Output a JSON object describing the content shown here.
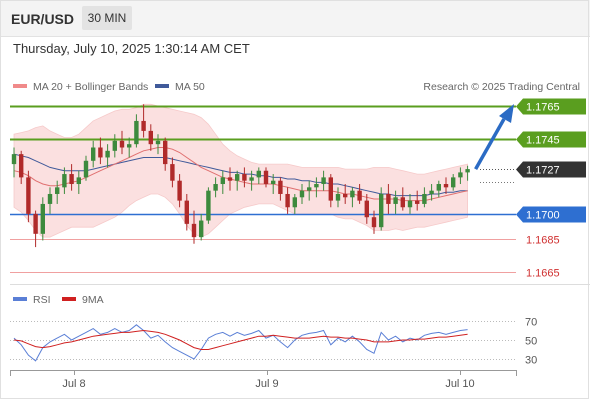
{
  "header": {
    "symbol": "EUR/USD",
    "timeframe": "30 MIN"
  },
  "datetime": "Thursday, July 10, 2025 1:30:14 AM CET",
  "legend": {
    "bb_label": "MA 20 + Bollinger Bands",
    "ma50_label": "MA 50",
    "copyright": "Research © 2025 Trading Central",
    "rsi_label": "RSI",
    "rsi_ma_label": "9MA"
  },
  "colors": {
    "resistance": "#5a9e1f",
    "support": "#2e6fd1",
    "target": "#d03030",
    "bullish": "#3d8a3d",
    "bearish": "#b02a2a",
    "bb_fill": "#fbe0e0",
    "ma20": "#e07070",
    "ma50": "#405a9a",
    "rsi": "#5a7fd6",
    "rsi_ma": "#d02020",
    "arrow": "#2b6bc4",
    "price_tag": "#333333"
  },
  "levels": [
    {
      "value": 1.1765,
      "label": "1.1765",
      "kind": "resistance"
    },
    {
      "value": 1.1745,
      "label": "1.1745",
      "kind": "resistance"
    },
    {
      "value": 1.1727,
      "label": "1.1727",
      "kind": "current"
    },
    {
      "value": 1.17,
      "label": "1.1700",
      "kind": "support"
    },
    {
      "value": 1.1685,
      "label": "1.1685",
      "kind": "target"
    },
    {
      "value": 1.1665,
      "label": "1.1665",
      "kind": "target"
    }
  ],
  "rsi_levels": [
    "70",
    "50",
    "30"
  ],
  "chart_data": {
    "type": "candlestick",
    "x_labels": [
      "Jul 8",
      "Jul 9",
      "Jul 10"
    ],
    "price_range": [
      1.1655,
      1.1775
    ],
    "rsi_range": [
      20,
      80
    ],
    "current_price": 1.1727,
    "candles": [
      [
        1.173,
        1.174,
        1.1722,
        1.1736
      ],
      [
        1.1736,
        1.1738,
        1.1718,
        1.1722
      ],
      [
        1.1722,
        1.1726,
        1.1695,
        1.17
      ],
      [
        1.17,
        1.1702,
        1.168,
        1.1688
      ],
      [
        1.1688,
        1.171,
        1.1684,
        1.1706
      ],
      [
        1.1706,
        1.1716,
        1.17,
        1.1712
      ],
      [
        1.1712,
        1.172,
        1.1706,
        1.1716
      ],
      [
        1.1716,
        1.1728,
        1.1712,
        1.1724
      ],
      [
        1.1724,
        1.173,
        1.1714,
        1.1718
      ],
      [
        1.1718,
        1.1726,
        1.1712,
        1.1722
      ],
      [
        1.1722,
        1.1735,
        1.172,
        1.1732
      ],
      [
        1.1732,
        1.1744,
        1.1728,
        1.174
      ],
      [
        1.174,
        1.1746,
        1.173,
        1.1734
      ],
      [
        1.1734,
        1.1742,
        1.1728,
        1.1738
      ],
      [
        1.1738,
        1.1748,
        1.1734,
        1.1744
      ],
      [
        1.1744,
        1.175,
        1.1736,
        1.174
      ],
      [
        1.174,
        1.1746,
        1.1734,
        1.1742
      ],
      [
        1.1742,
        1.176,
        1.174,
        1.1756
      ],
      [
        1.1756,
        1.1766,
        1.1746,
        1.175
      ],
      [
        1.175,
        1.1754,
        1.1738,
        1.1742
      ],
      [
        1.1742,
        1.1748,
        1.1736,
        1.1744
      ],
      [
        1.1744,
        1.1746,
        1.1726,
        1.173
      ],
      [
        1.173,
        1.1734,
        1.1716,
        1.172
      ],
      [
        1.172,
        1.1724,
        1.1704,
        1.1708
      ],
      [
        1.1708,
        1.1712,
        1.169,
        1.1694
      ],
      [
        1.1694,
        1.1702,
        1.1682,
        1.1686
      ],
      [
        1.1686,
        1.17,
        1.1684,
        1.1696
      ],
      [
        1.1696,
        1.1716,
        1.1694,
        1.1714
      ],
      [
        1.1714,
        1.1722,
        1.171,
        1.1718
      ],
      [
        1.1718,
        1.1726,
        1.1712,
        1.1722
      ],
      [
        1.1722,
        1.1728,
        1.1714,
        1.172
      ],
      [
        1.172,
        1.1726,
        1.1714,
        1.1724
      ],
      [
        1.1724,
        1.1728,
        1.1716,
        1.172
      ],
      [
        1.172,
        1.1726,
        1.1714,
        1.1722
      ],
      [
        1.1722,
        1.1728,
        1.1718,
        1.1726
      ],
      [
        1.1726,
        1.1728,
        1.1716,
        1.1718
      ],
      [
        1.1718,
        1.1724,
        1.1712,
        1.172
      ],
      [
        1.172,
        1.1722,
        1.1708,
        1.1712
      ],
      [
        1.1712,
        1.1716,
        1.17,
        1.1704
      ],
      [
        1.1704,
        1.1712,
        1.17,
        1.171
      ],
      [
        1.171,
        1.1718,
        1.1706,
        1.1714
      ],
      [
        1.1714,
        1.172,
        1.1708,
        1.1716
      ],
      [
        1.1716,
        1.1722,
        1.171,
        1.1718
      ],
      [
        1.1718,
        1.1726,
        1.1714,
        1.1722
      ],
      [
        1.1722,
        1.1724,
        1.1704,
        1.1708
      ],
      [
        1.1708,
        1.1716,
        1.1704,
        1.1712
      ],
      [
        1.1712,
        1.1718,
        1.1706,
        1.171
      ],
      [
        1.171,
        1.1716,
        1.1704,
        1.1714
      ],
      [
        1.1714,
        1.1718,
        1.1706,
        1.1708
      ],
      [
        1.1708,
        1.1712,
        1.1694,
        1.1698
      ],
      [
        1.1698,
        1.1702,
        1.1688,
        1.1692
      ],
      [
        1.1692,
        1.1716,
        1.169,
        1.1712
      ],
      [
        1.1712,
        1.1718,
        1.17,
        1.1706
      ],
      [
        1.1706,
        1.1714,
        1.17,
        1.171
      ],
      [
        1.171,
        1.1716,
        1.1702,
        1.1704
      ],
      [
        1.1704,
        1.1712,
        1.17,
        1.1708
      ],
      [
        1.1708,
        1.1714,
        1.1702,
        1.1706
      ],
      [
        1.1706,
        1.1716,
        1.1704,
        1.1712
      ],
      [
        1.1712,
        1.1718,
        1.1708,
        1.1714
      ],
      [
        1.1714,
        1.172,
        1.171,
        1.1718
      ],
      [
        1.1718,
        1.1722,
        1.1712,
        1.1716
      ],
      [
        1.1716,
        1.1724,
        1.1714,
        1.1722
      ],
      [
        1.1722,
        1.1728,
        1.1718,
        1.1725
      ],
      [
        1.1725,
        1.1729,
        1.172,
        1.1727
      ]
    ],
    "ma20": [
      1.1726,
      1.1725,
      1.1723,
      1.172,
      1.1718,
      1.1717,
      1.1717,
      1.1718,
      1.1719,
      1.172,
      1.1722,
      1.1724,
      1.1726,
      1.1728,
      1.173,
      1.1732,
      1.1734,
      1.1736,
      1.1738,
      1.1739,
      1.174,
      1.174,
      1.1739,
      1.1737,
      1.1734,
      1.1731,
      1.1728,
      1.1726,
      1.1724,
      1.1722,
      1.1721,
      1.172,
      1.1719,
      1.1718,
      1.1718,
      1.1718,
      1.1718,
      1.1717,
      1.1716,
      1.1715,
      1.1714,
      1.1714,
      1.1714,
      1.1714,
      1.1714,
      1.1713,
      1.1712,
      1.1712,
      1.1711,
      1.171,
      1.1709,
      1.1709,
      1.1709,
      1.1709,
      1.1708,
      1.1708,
      1.1708,
      1.1708,
      1.1709,
      1.171,
      1.1711,
      1.1712,
      1.1713,
      1.1714
    ],
    "bb_upper": [
      1.1748,
      1.1749,
      1.175,
      1.1752,
      1.1753,
      1.175,
      1.1748,
      1.1746,
      1.1746,
      1.1748,
      1.1752,
      1.1756,
      1.1758,
      1.176,
      1.1762,
      1.1763,
      1.1763,
      1.1764,
      1.1766,
      1.1766,
      1.1765,
      1.1764,
      1.1763,
      1.1762,
      1.1761,
      1.176,
      1.1758,
      1.1754,
      1.1748,
      1.1742,
      1.1738,
      1.1735,
      1.1733,
      1.1731,
      1.173,
      1.173,
      1.173,
      1.173,
      1.173,
      1.1729,
      1.1728,
      1.1728,
      1.1728,
      1.1728,
      1.1728,
      1.1728,
      1.1727,
      1.1727,
      1.1727,
      1.1727,
      1.1728,
      1.1728,
      1.1728,
      1.1727,
      1.1726,
      1.1725,
      1.1724,
      1.1724,
      1.1725,
      1.1726,
      1.1727,
      1.1728,
      1.1729,
      1.173
    ],
    "bb_lower": [
      1.1704,
      1.1701,
      1.1696,
      1.169,
      1.1686,
      1.1686,
      1.1688,
      1.169,
      1.1692,
      1.1692,
      1.1692,
      1.1692,
      1.1694,
      1.1696,
      1.1698,
      1.1701,
      1.1705,
      1.1708,
      1.171,
      1.1712,
      1.1712,
      1.171,
      1.1706,
      1.17,
      1.1693,
      1.1688,
      1.1686,
      1.1688,
      1.1692,
      1.1696,
      1.17,
      1.1702,
      1.1704,
      1.1705,
      1.1706,
      1.1706,
      1.1706,
      1.1704,
      1.1702,
      1.17,
      1.17,
      1.17,
      1.17,
      1.17,
      1.17,
      1.1698,
      1.1697,
      1.1697,
      1.1695,
      1.1693,
      1.169,
      1.169,
      1.169,
      1.1691,
      1.169,
      1.1691,
      1.1692,
      1.1692,
      1.1693,
      1.1694,
      1.1695,
      1.1696,
      1.1697,
      1.1698
    ],
    "ma50": [
      1.1736,
      1.1735,
      1.1734,
      1.1732,
      1.173,
      1.1728,
      1.1727,
      1.1726,
      1.1726,
      1.1726,
      1.1726,
      1.1727,
      1.1728,
      1.1729,
      1.173,
      1.1731,
      1.1732,
      1.1733,
      1.1734,
      1.1734,
      1.1734,
      1.1734,
      1.1733,
      1.1732,
      1.1731,
      1.173,
      1.1729,
      1.1728,
      1.1727,
      1.1726,
      1.1725,
      1.1725,
      1.1724,
      1.1724,
      1.1723,
      1.1723,
      1.1722,
      1.1722,
      1.1721,
      1.1721,
      1.172,
      1.172,
      1.1719,
      1.1719,
      1.1718,
      1.1718,
      1.1717,
      1.1716,
      1.1715,
      1.1714,
      1.1713,
      1.1712,
      1.1712,
      1.1711,
      1.1711,
      1.1711,
      1.1711,
      1.1711,
      1.1712,
      1.1712,
      1.1713,
      1.1713,
      1.1714,
      1.1714
    ],
    "rsi": [
      52,
      45,
      34,
      28,
      42,
      48,
      52,
      56,
      50,
      54,
      58,
      62,
      56,
      58,
      62,
      58,
      60,
      66,
      60,
      52,
      55,
      48,
      42,
      38,
      34,
      30,
      40,
      52,
      56,
      58,
      54,
      58,
      55,
      57,
      60,
      52,
      55,
      48,
      42,
      50,
      55,
      57,
      58,
      60,
      45,
      52,
      48,
      54,
      48,
      40,
      36,
      58,
      50,
      54,
      48,
      52,
      50,
      55,
      57,
      58,
      56,
      58,
      60,
      61
    ],
    "rsi_ma": [
      50,
      49,
      46,
      43,
      42,
      43,
      45,
      47,
      48,
      50,
      52,
      54,
      55,
      56,
      57,
      58,
      58,
      59,
      60,
      59,
      58,
      56,
      53,
      50,
      46,
      42,
      40,
      40,
      42,
      44,
      46,
      48,
      50,
      52,
      54,
      54,
      55,
      54,
      53,
      52,
      52,
      52,
      53,
      54,
      53,
      53,
      52,
      52,
      51,
      50,
      48,
      48,
      48,
      49,
      50,
      50,
      51,
      51,
      52,
      53,
      53,
      54,
      55,
      56
    ],
    "projection": {
      "from": 1.1727,
      "to": 1.1765
    }
  }
}
